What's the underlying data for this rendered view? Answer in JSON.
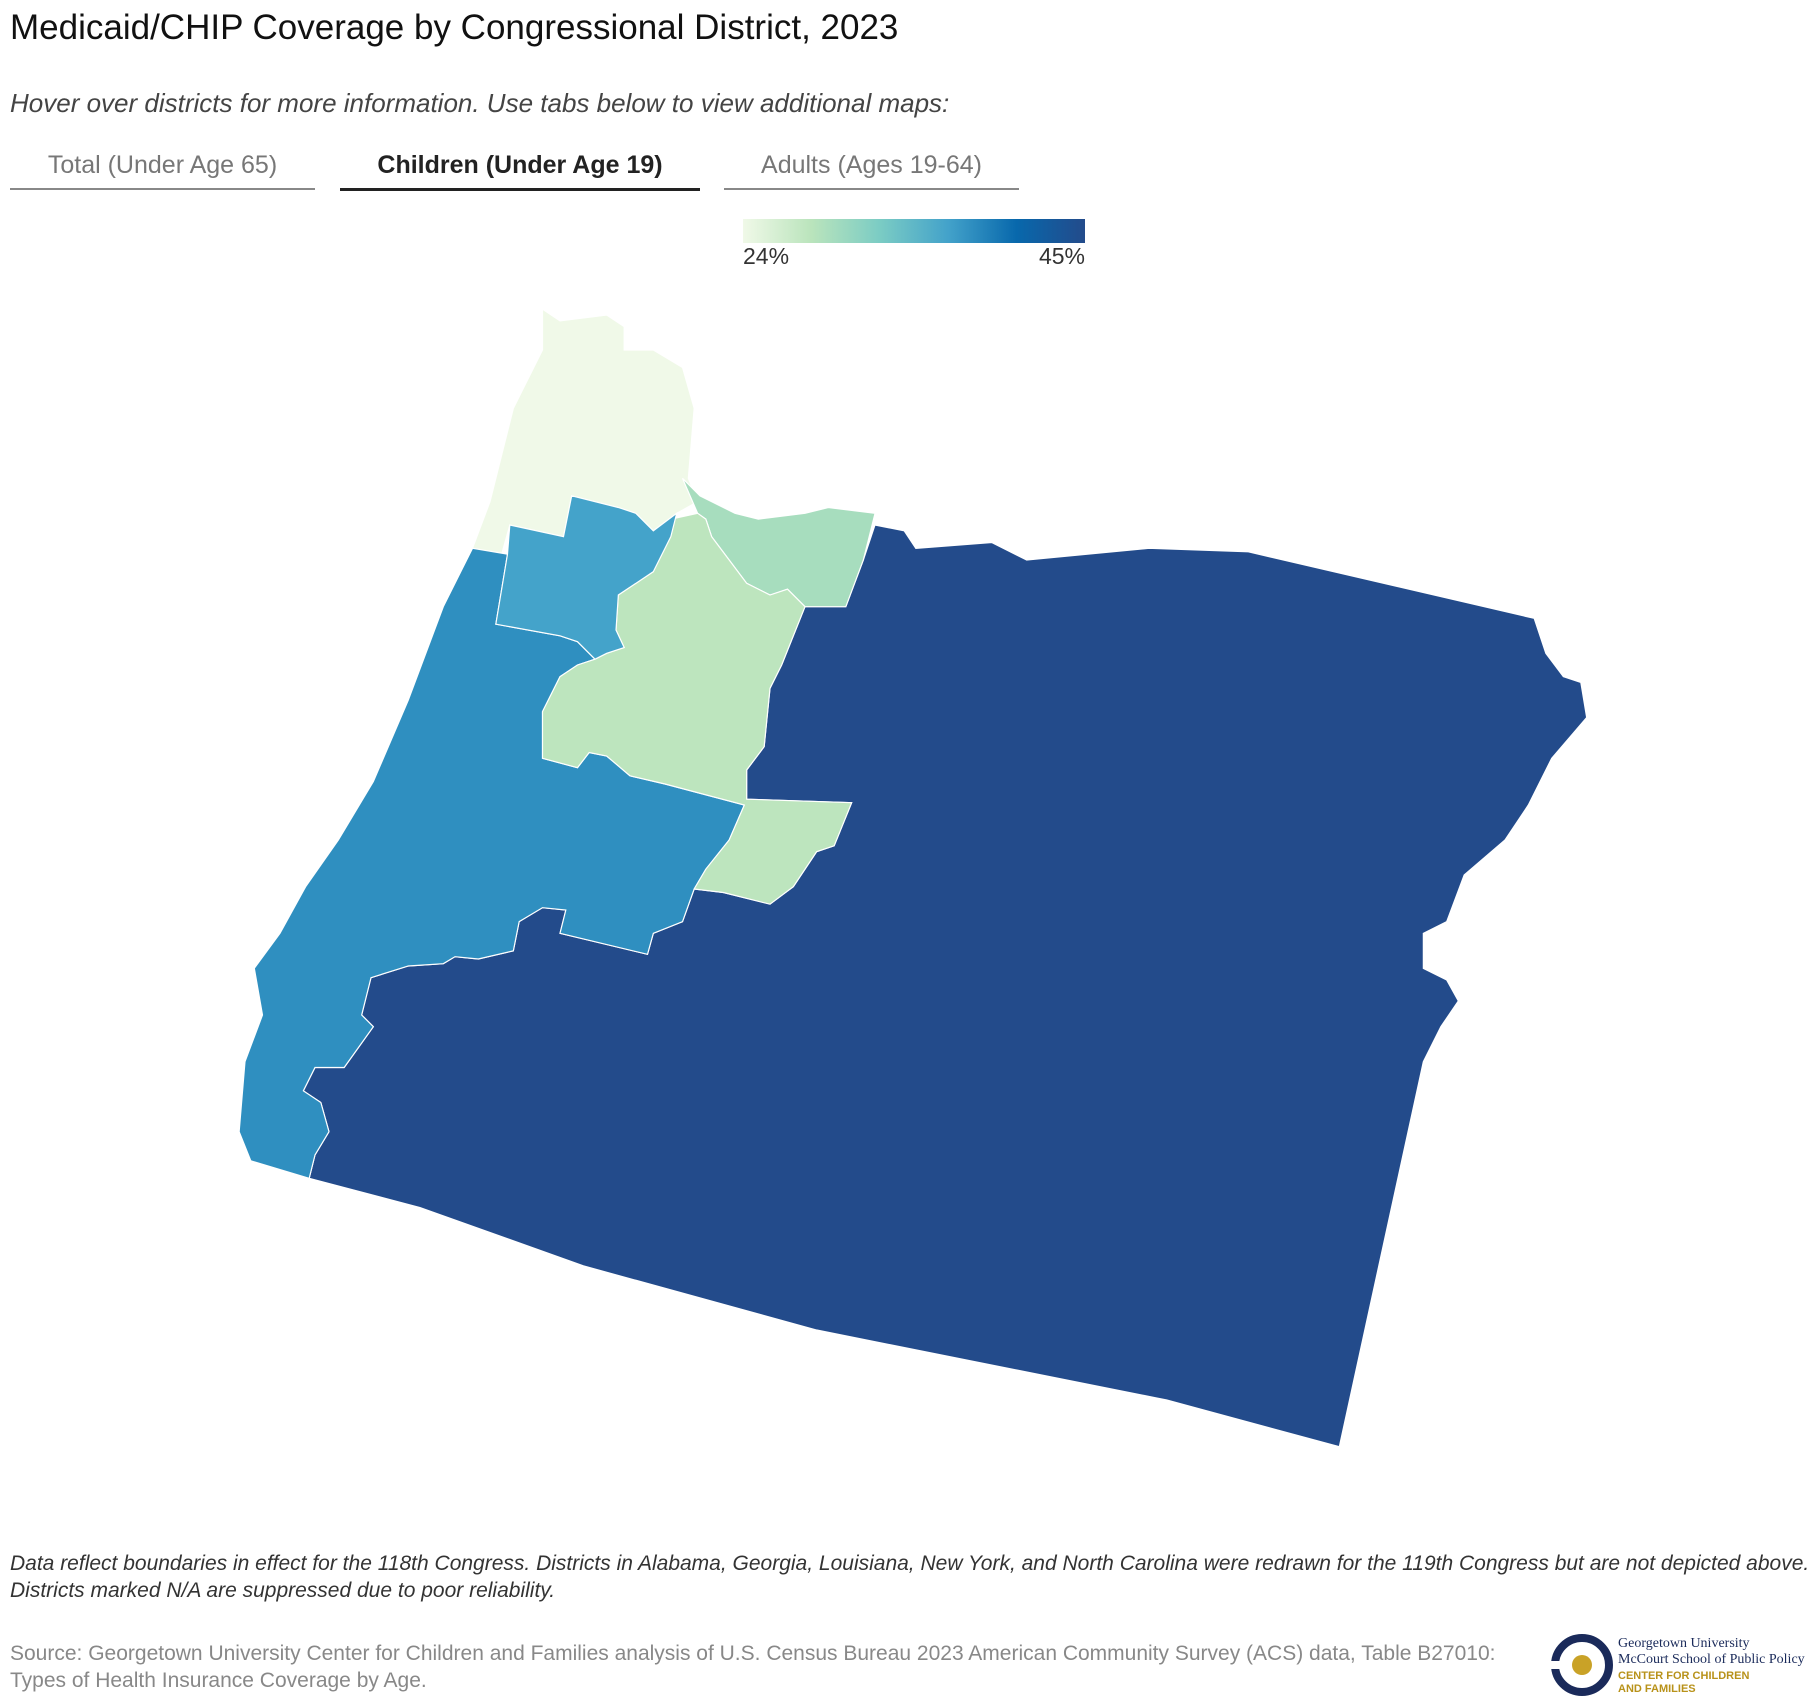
{
  "header": {
    "title": "Medicaid/CHIP Coverage by Congressional District, 2023",
    "subtitle": "Hover over districts for more information. Use tabs below to view additional maps:"
  },
  "tabs": [
    "Total (Under Age 65)",
    "Children (Under Age 19)",
    "Adults (Ages 19-64)"
  ],
  "active_tab": 1,
  "map": {
    "type": "choropleth",
    "color_stops": [
      "#f0f9e8",
      "#bae4bc",
      "#7bccc4",
      "#43a2ca",
      "#0868ac",
      "#234b8b"
    ],
    "scale": {
      "min": {
        "value": 24,
        "label": "24%"
      },
      "max": {
        "value": 45,
        "label": "45%"
      }
    },
    "values": [
      24,
      45,
      29.5,
      38,
      28,
      36.5
    ]
  },
  "footer": {
    "note": "Data reflect boundaries in effect for the 118th Congress. Districts in Alabama, Georgia, Louisiana, New York, and North Carolina were redrawn for the 119th Congress but are not depicted above. Districts marked N/A are suppressed due to poor reliability.",
    "source": "Source: Georgetown University Center for Children and Families analysis of U.S. Census Bureau 2023 American Community Survey (ACS) data, Table B27010: Types of Health Insurance Coverage by Age.",
    "logo": [
      "Georgetown University",
      "McCourt School of Public Policy",
      "CENTER FOR CHILDREN",
      "AND FAMILIES"
    ]
  }
}
